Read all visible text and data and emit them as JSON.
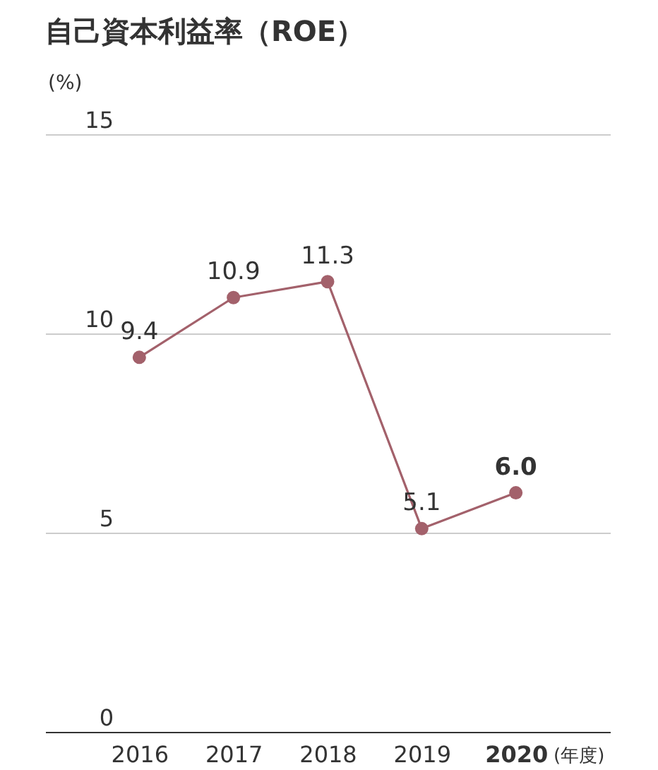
{
  "chart_data": {
    "type": "line",
    "title": "自己資本利益率（ROE）",
    "ylabel": "(%)",
    "xlabel": "(年度)",
    "categories": [
      "2016",
      "2017",
      "2018",
      "2019",
      "2020"
    ],
    "series": [
      {
        "color": "#a3616b",
        "values": [
          9.4,
          10.9,
          11.3,
          5.1,
          6.0
        ],
        "value_labels": [
          "9.4",
          "10.9",
          "11.3",
          "5.1",
          "6.0"
        ]
      }
    ],
    "ylim": [
      0,
      15
    ],
    "yticks": [
      0,
      5,
      10,
      15
    ],
    "grid": "y",
    "marker": "circle",
    "line_style": "solid"
  }
}
